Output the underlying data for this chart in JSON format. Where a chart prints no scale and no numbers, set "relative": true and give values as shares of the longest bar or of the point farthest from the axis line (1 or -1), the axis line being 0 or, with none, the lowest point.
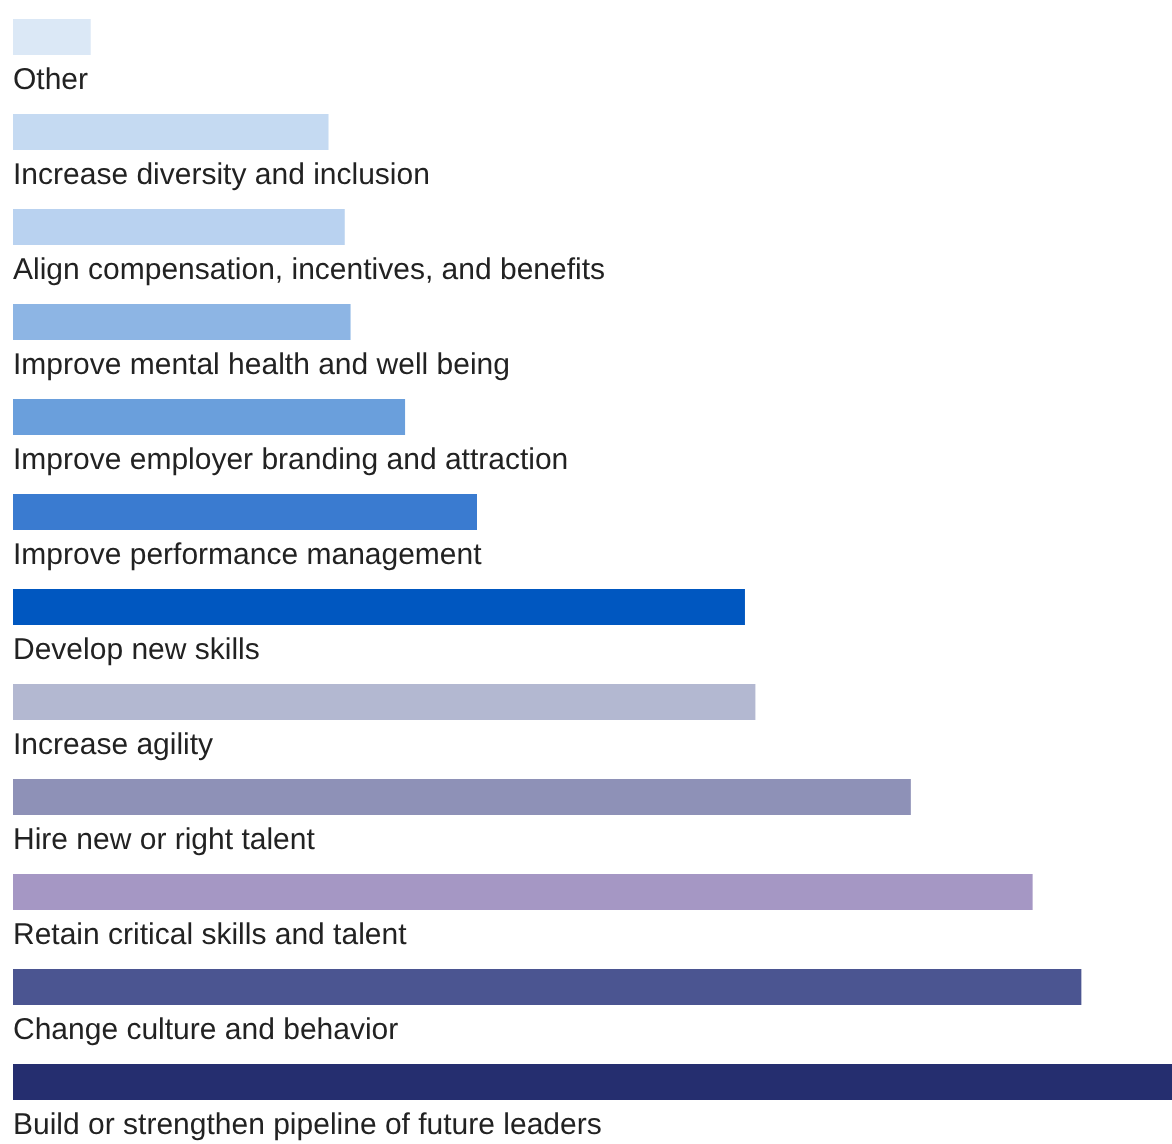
{
  "chart_data": {
    "type": "bar",
    "orientation": "horizontal",
    "relative": true,
    "categories": [
      "Other",
      "Increase diversity and inclusion",
      "Align compensation, incentives, and benefits",
      "Improve mental health and well being",
      "Improve employer branding and attraction",
      "Improve performance management",
      "Develop new skills",
      "Increase agility",
      "Hire new or right talent",
      "Retain critical skills and talent",
      "Change culture and behavior",
      "Build or strengthen pipeline of future leaders"
    ],
    "values": [
      0.067,
      0.272,
      0.286,
      0.291,
      0.338,
      0.4,
      0.631,
      0.64,
      0.774,
      0.879,
      0.921,
      1
    ],
    "colors": [
      "#dbe8f6",
      "#c5daf2",
      "#b9d2f0",
      "#8db5e4",
      "#6a9fdc",
      "#3a7bd0",
      "#0057c0",
      "#b3b8d1",
      "#8e91b7",
      "#a597c4",
      "#4b5591",
      "#252e6f"
    ],
    "grid": false
  }
}
